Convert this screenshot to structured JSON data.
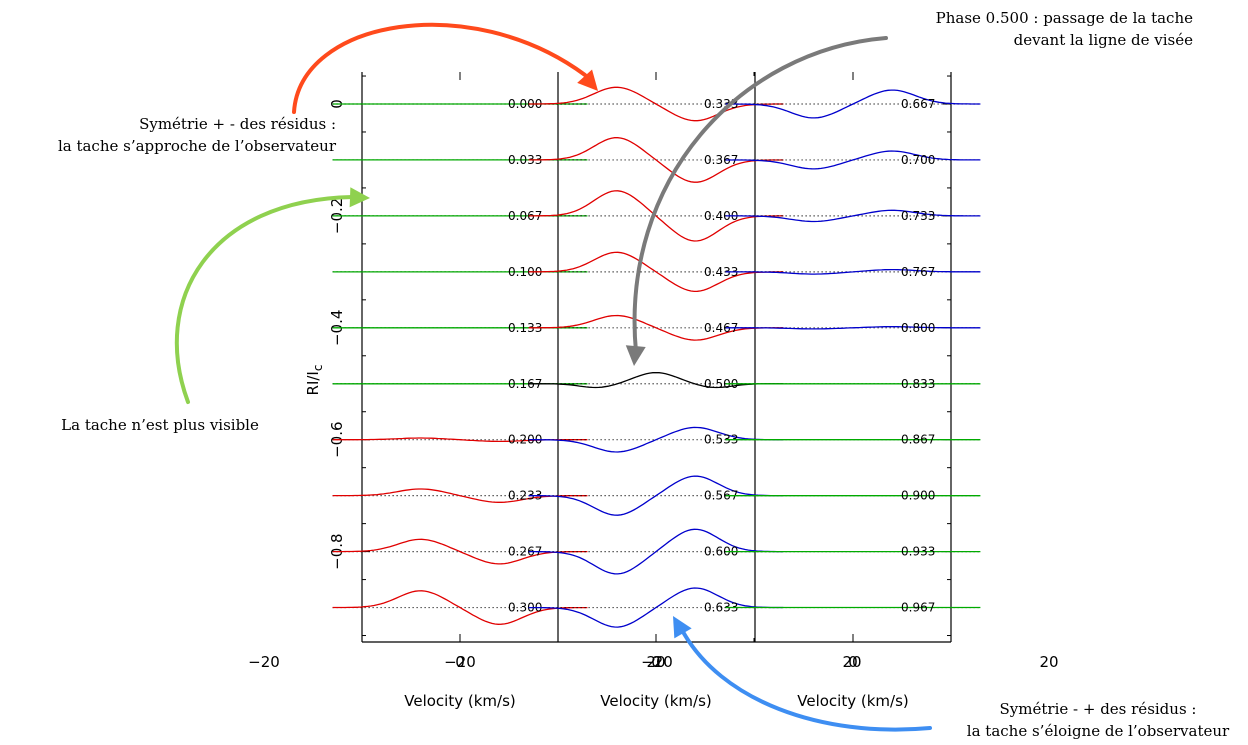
{
  "chart_data": {
    "type": "line",
    "ylabel": "RI/I",
    "ylabel_sub": "c",
    "xlabel": "Velocity (km/s)",
    "xlim": [
      -20,
      30
    ],
    "ylim": [
      -1.0,
      0.1
    ],
    "xticks": [
      "−20",
      "0",
      "20"
    ],
    "yticks": [
      "0",
      "−0.2",
      "−0.4",
      "−0.6",
      "−0.8"
    ],
    "ytick_values": [
      0,
      -0.2,
      -0.4,
      -0.6,
      -0.8
    ],
    "profile_velocity_range": [
      -13,
      13
    ],
    "offset_step": -0.1,
    "colors": {
      "spot_visible_approach": "#e00000",
      "spot_center": "#000000",
      "spot_recede": "#0000cc",
      "spot_hidden": "#00aa00",
      "reference_line": "#000000"
    },
    "panels": [
      {
        "phases": [
          "0.000",
          "0.033",
          "0.067",
          "0.100",
          "0.133",
          "0.167",
          "0.200",
          "0.233",
          "0.267",
          "0.300"
        ],
        "colors": [
          "#00aa00",
          "#00aa00",
          "#00aa00",
          "#00aa00",
          "#00aa00",
          "#00aa00",
          "#e00000",
          "#e00000",
          "#e00000",
          "#e00000"
        ],
        "amplitudes": [
          0,
          0,
          0,
          0,
          0,
          0,
          0.003,
          0.012,
          0.022,
          0.03
        ]
      },
      {
        "phases": [
          "0.333",
          "0.367",
          "0.400",
          "0.433",
          "0.467",
          "0.500",
          "0.533",
          "0.567",
          "0.600",
          "0.633"
        ],
        "colors": [
          "#e00000",
          "#e00000",
          "#e00000",
          "#e00000",
          "#e00000",
          "#000000",
          "#0000cc",
          "#0000cc",
          "#0000cc",
          "#0000cc"
        ],
        "amplitudes": [
          0.03,
          0.04,
          0.045,
          0.035,
          0.022,
          0.02,
          0.022,
          0.035,
          0.04,
          0.035
        ]
      },
      {
        "phases": [
          "0.667",
          "0.700",
          "0.733",
          "0.767",
          "0.800",
          "0.833",
          "0.867",
          "0.900",
          "0.933",
          "0.967"
        ],
        "colors": [
          "#0000cc",
          "#0000cc",
          "#0000cc",
          "#0000cc",
          "#0000cc",
          "#00aa00",
          "#00aa00",
          "#00aa00",
          "#00aa00",
          "#00aa00"
        ],
        "amplitudes": [
          0.025,
          0.016,
          0.01,
          0.004,
          0.002,
          0,
          0,
          0,
          0,
          0
        ]
      }
    ]
  },
  "annotations": [
    {
      "id": "approach",
      "lines": [
        "Symétrie + - des résidus :",
        "la tache s’approche de l’observateur"
      ],
      "arrow_color": "#ff4a1c"
    },
    {
      "id": "phase-half",
      "lines": [
        "Phase 0.500 : passage de la tache",
        "devant la ligne de visée"
      ],
      "arrow_color": "#7a7a7a"
    },
    {
      "id": "invisible",
      "lines": [
        "La tache n’est plus visible"
      ],
      "arrow_color": "#8fd14f"
    },
    {
      "id": "recede",
      "lines": [
        "Symétrie - + des résidus :",
        "la tache s’éloigne de l’observateur"
      ],
      "arrow_color": "#3e8ef2"
    }
  ]
}
